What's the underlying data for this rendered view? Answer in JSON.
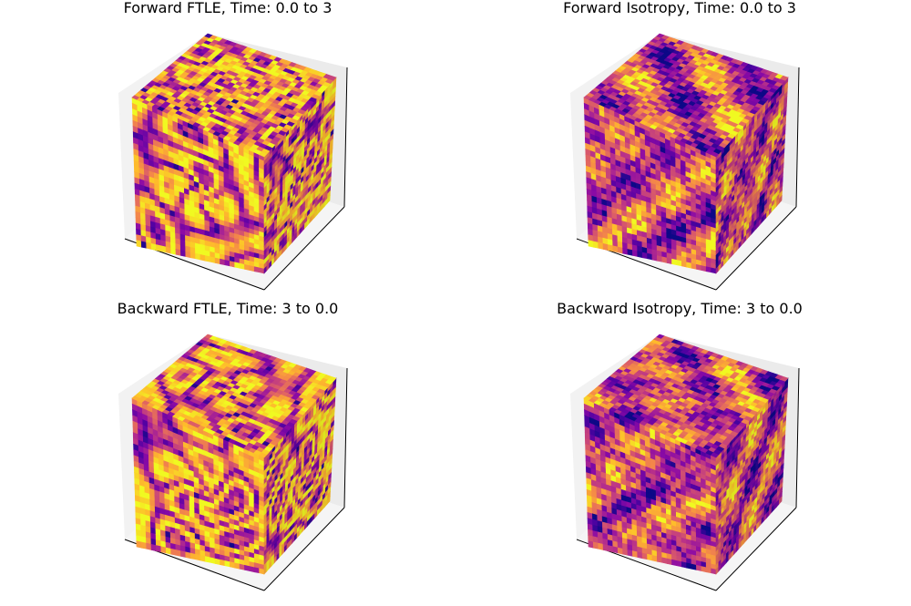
{
  "chart_data": [
    {
      "type": "heatmap",
      "title": "Forward FTLE, Time: 0.0 to 3",
      "colormap": "plasma",
      "pattern": "swirl",
      "seed": 11
    },
    {
      "type": "heatmap",
      "title": "Forward Isotropy, Time: 0.0 to 3",
      "colormap": "plasma",
      "pattern": "noisy",
      "seed": 23
    },
    {
      "type": "heatmap",
      "title": "Backward FTLE, Time: 3 to 0.0",
      "colormap": "plasma",
      "pattern": "swirl",
      "seed": 37
    },
    {
      "type": "heatmap",
      "title": "Backward Isotropy, Time: 3 to 0.0",
      "colormap": "plasma",
      "pattern": "noisy",
      "seed": 51
    }
  ],
  "colors": {
    "pane_left": "#f2f2f2",
    "pane_back": "#ebebeb",
    "pane_floor": "#f5f5f5",
    "axis_line": "#000000",
    "title": "#000000"
  }
}
